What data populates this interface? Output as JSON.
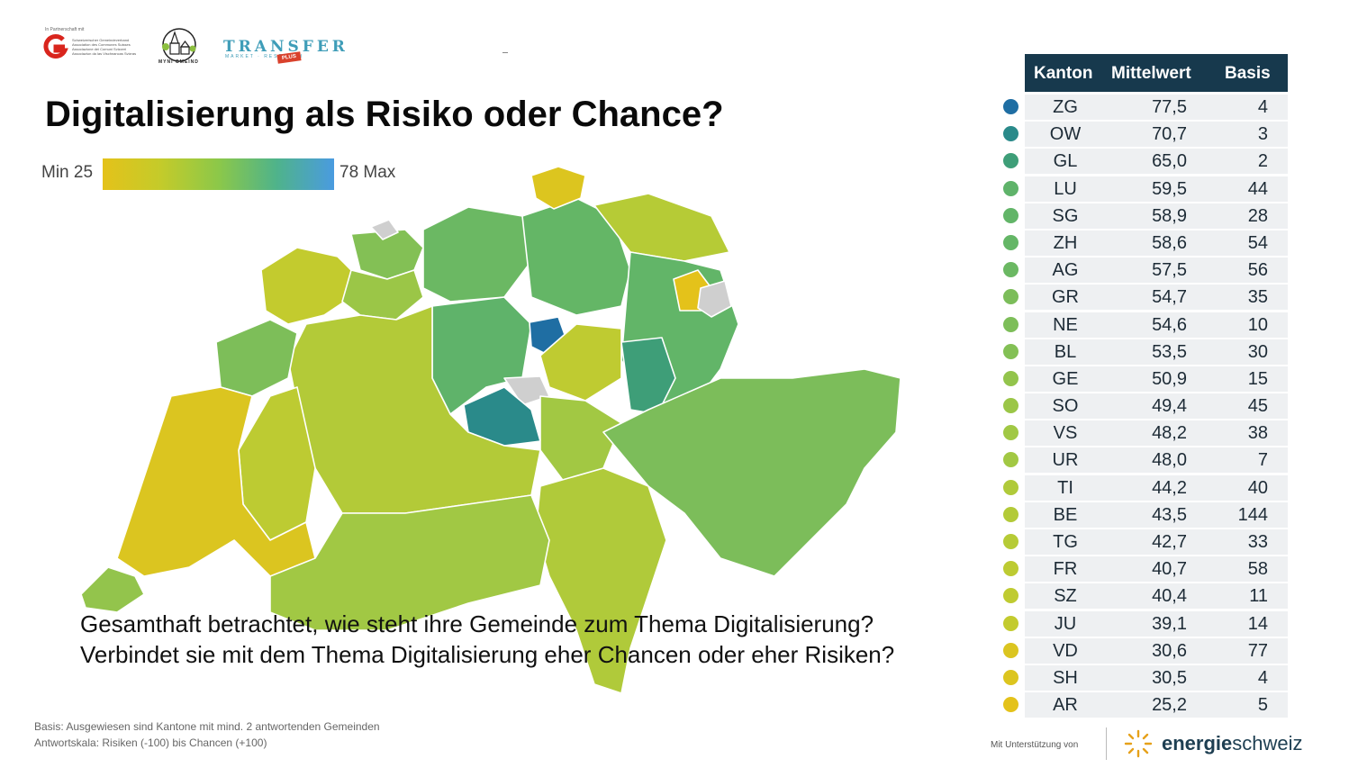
{
  "header": {
    "partner_label": "In Partnerschaft mit",
    "association_lines": "Schweizerischer Gemeindeverband Association des Communes Suisses Associazione dei Comuni Svizzeri Associaziun da las Vischnancas Svizras",
    "dorf_logo_text": "MYNI GMEIND",
    "transfer_logo": "TRANSFER",
    "transfer_sub": "MARKET · RESEARCH",
    "transfer_plus": "PLUS"
  },
  "title": "Digitalisierung als Risiko oder Chance?",
  "legend": {
    "min_label": "Min 25",
    "max_label": "78 Max",
    "min": 25,
    "max": 78,
    "colors": [
      "#e4c21a",
      "#c4cb2a",
      "#8cc849",
      "#4fb38a",
      "#4a9be0"
    ]
  },
  "question": "Gesamthaft betrachtet, wie steht ihre Gemeinde zum Thema Digitalisierung? Verbindet sie mit dem Thema Digitalisierung eher Chancen oder eher Risiken?",
  "footnote": {
    "line1": "Basis: Ausgewiesen sind Kantone mit mind. 2 antwortenden Gemeinden",
    "line2": "Antwortskala: Risiken (-100) bis Chancen (+100)"
  },
  "table": {
    "headers": {
      "kanton": "Kanton",
      "mittelwert": "Mittelwert",
      "basis": "Basis"
    },
    "rows": [
      {
        "kanton": "ZG",
        "mittelwert": "77,5",
        "basis": "4",
        "color": "#1f6ea3"
      },
      {
        "kanton": "OW",
        "mittelwert": "70,7",
        "basis": "3",
        "color": "#2a8a8a"
      },
      {
        "kanton": "GL",
        "mittelwert": "65,0",
        "basis": "2",
        "color": "#3e9e78"
      },
      {
        "kanton": "LU",
        "mittelwert": "59,5",
        "basis": "44",
        "color": "#5fb36a"
      },
      {
        "kanton": "SG",
        "mittelwert": "58,9",
        "basis": "28",
        "color": "#62b568"
      },
      {
        "kanton": "ZH",
        "mittelwert": "58,6",
        "basis": "54",
        "color": "#64b666"
      },
      {
        "kanton": "AG",
        "mittelwert": "57,5",
        "basis": "56",
        "color": "#6bb863"
      },
      {
        "kanton": "GR",
        "mittelwert": "54,7",
        "basis": "35",
        "color": "#7cbd5a"
      },
      {
        "kanton": "NE",
        "mittelwert": "54,6",
        "basis": "10",
        "color": "#7dbe59"
      },
      {
        "kanton": "BL",
        "mittelwert": "53,5",
        "basis": "30",
        "color": "#83c055"
      },
      {
        "kanton": "GE",
        "mittelwert": "50,9",
        "basis": "15",
        "color": "#93c44c"
      },
      {
        "kanton": "SO",
        "mittelwert": "49,4",
        "basis": "45",
        "color": "#9bc647"
      },
      {
        "kanton": "VS",
        "mittelwert": "48,2",
        "basis": "38",
        "color": "#a1c844"
      },
      {
        "kanton": "UR",
        "mittelwert": "48,0",
        "basis": "7",
        "color": "#a2c843"
      },
      {
        "kanton": "TI",
        "mittelwert": "44,2",
        "basis": "40",
        "color": "#b0ca3a"
      },
      {
        "kanton": "BE",
        "mittelwert": "43,5",
        "basis": "144",
        "color": "#b3ca38"
      },
      {
        "kanton": "TG",
        "mittelwert": "42,7",
        "basis": "33",
        "color": "#b6cb36"
      },
      {
        "kanton": "FR",
        "mittelwert": "40,7",
        "basis": "58",
        "color": "#bdcb32"
      },
      {
        "kanton": "SZ",
        "mittelwert": "40,4",
        "basis": "11",
        "color": "#bfcb31"
      },
      {
        "kanton": "JU",
        "mittelwert": "39,1",
        "basis": "14",
        "color": "#c3cb2e"
      },
      {
        "kanton": "VD",
        "mittelwert": "30,6",
        "basis": "77",
        "color": "#dbc520"
      },
      {
        "kanton": "SH",
        "mittelwert": "30,5",
        "basis": "4",
        "color": "#dcc51f"
      },
      {
        "kanton": "AR",
        "mittelwert": "25,2",
        "basis": "5",
        "color": "#e4c21a"
      }
    ]
  },
  "support": {
    "label": "Mit Unterstützung von",
    "brand_strong": "energie",
    "brand_light": "schweiz"
  },
  "map_colors": {
    "no_data": "#cfcfcf"
  }
}
